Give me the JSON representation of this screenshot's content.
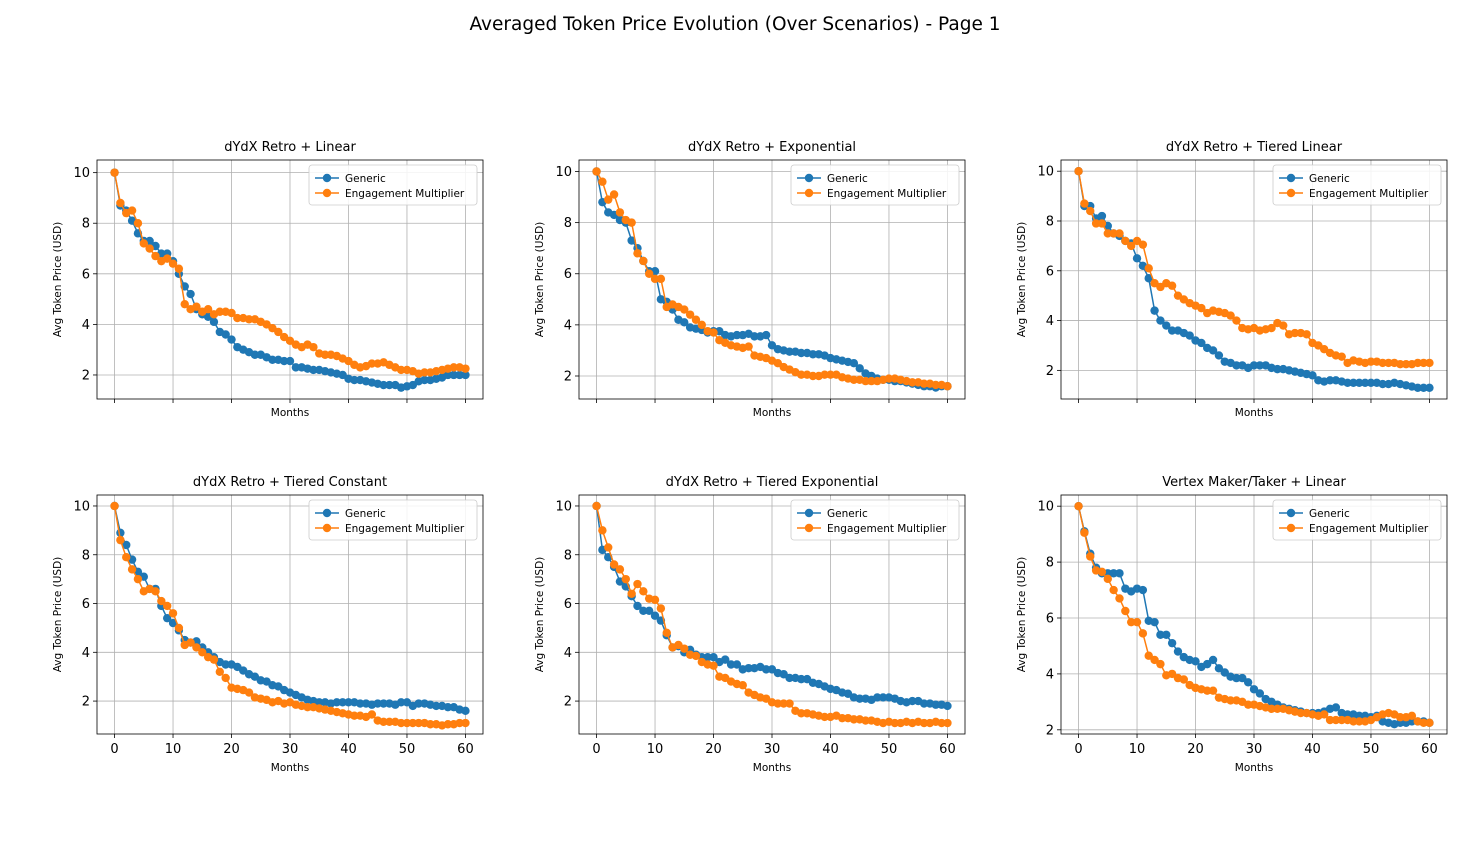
{
  "suptitle": "Averaged Token Price Evolution (Over Scenarios) - Page 1",
  "colors": {
    "generic": "#1f77b4",
    "engagement": "#ff7f0e",
    "grid": "#b0b0b0"
  },
  "chart_data": [
    {
      "type": "line",
      "title": "dYdX Retro + Linear",
      "xlabel": "Months",
      "ylabel": "Avg Token Price (USD)",
      "xlim": [
        -3,
        63
      ],
      "ylim": [
        1.05,
        10.5
      ],
      "xticks": [
        0,
        10,
        20,
        30,
        40,
        50,
        60
      ],
      "yticks": [
        2,
        4,
        6,
        8,
        10
      ],
      "show_xtick_labels": false,
      "grid": true,
      "legend": "top-right",
      "series": [
        {
          "name": "Generic",
          "values": [
            10,
            8.7,
            8.5,
            8.1,
            7.6,
            7.3,
            7.3,
            7.1,
            6.8,
            6.8,
            6.5,
            6.0,
            5.5,
            5.2,
            4.6,
            4.4,
            4.3,
            4.1,
            3.7,
            3.6,
            3.4,
            3.1,
            3.0,
            2.9,
            2.8,
            2.8,
            2.7,
            2.6,
            2.6,
            2.55,
            2.55,
            2.3,
            2.3,
            2.25,
            2.2,
            2.2,
            2.15,
            2.1,
            2.05,
            2.0,
            1.85,
            1.8,
            1.8,
            1.75,
            1.7,
            1.65,
            1.6,
            1.6,
            1.6,
            1.5,
            1.55,
            1.6,
            1.75,
            1.8,
            1.8,
            1.85,
            1.9,
            2.0,
            2.0,
            2.0,
            2.0
          ]
        },
        {
          "name": "Engagement Multiplier",
          "values": [
            10,
            8.8,
            8.4,
            8.5,
            8.0,
            7.2,
            7.0,
            6.7,
            6.5,
            6.6,
            6.4,
            6.2,
            4.8,
            4.6,
            4.7,
            4.5,
            4.6,
            4.4,
            4.5,
            4.5,
            4.45,
            4.25,
            4.25,
            4.2,
            4.2,
            4.1,
            4.0,
            3.85,
            3.7,
            3.5,
            3.35,
            3.2,
            3.1,
            3.2,
            3.1,
            2.85,
            2.8,
            2.8,
            2.75,
            2.65,
            2.55,
            2.4,
            2.3,
            2.35,
            2.45,
            2.45,
            2.5,
            2.4,
            2.3,
            2.2,
            2.2,
            2.15,
            2.05,
            2.1,
            2.1,
            2.15,
            2.2,
            2.25,
            2.3,
            2.3,
            2.25
          ]
        }
      ]
    },
    {
      "type": "line",
      "title": "dYdX Retro + Exponential",
      "xlabel": "Months",
      "ylabel": "Avg Token Price (USD)",
      "xlim": [
        -3,
        63
      ],
      "ylim": [
        1.1,
        10.45
      ],
      "xticks": [
        0,
        10,
        20,
        30,
        40,
        50,
        60
      ],
      "yticks": [
        2,
        4,
        6,
        8,
        10
      ],
      "show_xtick_labels": false,
      "grid": true,
      "legend": "top-right",
      "series": [
        {
          "name": "Generic",
          "values": [
            10,
            8.8,
            8.4,
            8.3,
            8.1,
            8.0,
            7.3,
            7.0,
            6.5,
            6.1,
            6.1,
            5.0,
            4.9,
            4.6,
            4.2,
            4.1,
            3.9,
            3.85,
            3.8,
            3.7,
            3.75,
            3.75,
            3.6,
            3.55,
            3.6,
            3.6,
            3.65,
            3.55,
            3.55,
            3.6,
            3.2,
            3.05,
            3.0,
            2.95,
            2.95,
            2.9,
            2.9,
            2.85,
            2.85,
            2.8,
            2.7,
            2.65,
            2.6,
            2.55,
            2.5,
            2.3,
            2.1,
            2.0,
            1.9,
            1.85,
            1.85,
            1.8,
            1.8,
            1.75,
            1.7,
            1.65,
            1.6,
            1.6,
            1.55,
            1.6,
            1.6
          ]
        },
        {
          "name": "Engagement Multiplier",
          "values": [
            10,
            9.6,
            8.9,
            9.1,
            8.4,
            8.1,
            8.0,
            6.8,
            6.5,
            6.0,
            5.8,
            5.8,
            4.7,
            4.8,
            4.7,
            4.6,
            4.4,
            4.2,
            4.0,
            3.75,
            3.7,
            3.4,
            3.3,
            3.2,
            3.15,
            3.1,
            3.15,
            2.8,
            2.75,
            2.7,
            2.6,
            2.5,
            2.35,
            2.25,
            2.15,
            2.05,
            2.05,
            2.0,
            2.0,
            2.05,
            2.05,
            2.05,
            1.95,
            1.9,
            1.85,
            1.85,
            1.8,
            1.8,
            1.8,
            1.85,
            1.9,
            1.9,
            1.85,
            1.8,
            1.75,
            1.75,
            1.7,
            1.7,
            1.65,
            1.65,
            1.6
          ]
        }
      ]
    },
    {
      "type": "line",
      "title": "dYdX Retro + Tiered Linear",
      "xlabel": "Months",
      "ylabel": "Avg Token Price (USD)",
      "xlim": [
        -3,
        63
      ],
      "ylim": [
        0.85,
        10.45
      ],
      "xticks": [
        0,
        10,
        20,
        30,
        40,
        50,
        60
      ],
      "yticks": [
        2,
        4,
        6,
        8,
        10
      ],
      "show_xtick_labels": false,
      "grid": true,
      "legend": "top-right",
      "series": [
        {
          "name": "Generic",
          "values": [
            10,
            8.6,
            8.6,
            8.1,
            8.2,
            7.8,
            7.5,
            7.4,
            7.2,
            7.1,
            6.5,
            6.2,
            5.7,
            4.4,
            4.0,
            3.8,
            3.6,
            3.6,
            3.5,
            3.4,
            3.2,
            3.1,
            2.9,
            2.8,
            2.6,
            2.35,
            2.3,
            2.2,
            2.2,
            2.1,
            2.2,
            2.2,
            2.2,
            2.1,
            2.05,
            2.05,
            2.0,
            1.95,
            1.9,
            1.85,
            1.8,
            1.6,
            1.55,
            1.6,
            1.6,
            1.55,
            1.5,
            1.5,
            1.5,
            1.5,
            1.5,
            1.5,
            1.45,
            1.45,
            1.5,
            1.45,
            1.4,
            1.35,
            1.3,
            1.3,
            1.3
          ]
        },
        {
          "name": "Engagement Multiplier",
          "values": [
            10,
            8.7,
            8.4,
            7.9,
            7.9,
            7.5,
            7.5,
            7.5,
            7.2,
            7.0,
            7.2,
            7.05,
            6.1,
            5.5,
            5.35,
            5.5,
            5.4,
            5.0,
            4.85,
            4.7,
            4.6,
            4.5,
            4.3,
            4.4,
            4.35,
            4.3,
            4.2,
            4.0,
            3.7,
            3.65,
            3.7,
            3.6,
            3.65,
            3.7,
            3.9,
            3.8,
            3.45,
            3.5,
            3.5,
            3.45,
            3.1,
            3.0,
            2.85,
            2.7,
            2.6,
            2.55,
            2.3,
            2.4,
            2.35,
            2.3,
            2.35,
            2.35,
            2.3,
            2.3,
            2.3,
            2.25,
            2.25,
            2.25,
            2.3,
            2.3,
            2.3
          ]
        }
      ]
    },
    {
      "type": "line",
      "title": "dYdX Retro + Tiered Constant",
      "xlabel": "Months",
      "ylabel": "Avg Token Price (USD)",
      "xlim": [
        -3,
        63
      ],
      "ylim": [
        0.65,
        10.45
      ],
      "xticks": [
        0,
        10,
        20,
        30,
        40,
        50,
        60
      ],
      "yticks": [
        2,
        4,
        6,
        8,
        10
      ],
      "show_xtick_labels": true,
      "grid": true,
      "legend": "top-right",
      "series": [
        {
          "name": "Generic",
          "values": [
            10,
            8.9,
            8.4,
            7.8,
            7.3,
            7.1,
            6.6,
            6.6,
            5.9,
            5.4,
            5.2,
            4.9,
            4.5,
            4.4,
            4.45,
            4.2,
            4.0,
            3.8,
            3.6,
            3.5,
            3.5,
            3.4,
            3.25,
            3.1,
            3.0,
            2.85,
            2.8,
            2.65,
            2.6,
            2.45,
            2.35,
            2.25,
            2.15,
            2.05,
            2.0,
            1.95,
            1.95,
            1.9,
            1.95,
            1.95,
            1.95,
            1.95,
            1.9,
            1.9,
            1.85,
            1.9,
            1.9,
            1.9,
            1.85,
            1.95,
            1.95,
            1.8,
            1.9,
            1.9,
            1.85,
            1.8,
            1.8,
            1.75,
            1.75,
            1.65,
            1.6
          ]
        },
        {
          "name": "Engagement Multiplier",
          "values": [
            10,
            8.6,
            7.9,
            7.4,
            7.0,
            6.5,
            6.6,
            6.5,
            6.1,
            5.9,
            5.6,
            5.0,
            4.3,
            4.4,
            4.2,
            4.0,
            3.8,
            3.7,
            3.2,
            2.95,
            2.55,
            2.5,
            2.45,
            2.35,
            2.15,
            2.1,
            2.05,
            1.95,
            2.0,
            1.9,
            1.95,
            1.85,
            1.8,
            1.75,
            1.75,
            1.7,
            1.65,
            1.6,
            1.55,
            1.5,
            1.45,
            1.4,
            1.4,
            1.35,
            1.45,
            1.2,
            1.15,
            1.15,
            1.15,
            1.1,
            1.1,
            1.1,
            1.1,
            1.1,
            1.05,
            1.05,
            1.0,
            1.05,
            1.05,
            1.1,
            1.1
          ]
        }
      ]
    },
    {
      "type": "line",
      "title": "dYdX Retro + Tiered Exponential",
      "xlabel": "Months",
      "ylabel": "Avg Token Price (USD)",
      "xlim": [
        -3,
        63
      ],
      "ylim": [
        0.65,
        10.45
      ],
      "xticks": [
        0,
        10,
        20,
        30,
        40,
        50,
        60
      ],
      "yticks": [
        2,
        4,
        6,
        8,
        10
      ],
      "show_xtick_labels": true,
      "grid": true,
      "legend": "top-right",
      "series": [
        {
          "name": "Generic",
          "values": [
            10,
            8.2,
            7.9,
            7.5,
            6.9,
            6.7,
            6.3,
            5.9,
            5.7,
            5.7,
            5.5,
            5.3,
            4.7,
            4.2,
            4.25,
            4.0,
            4.1,
            3.9,
            3.8,
            3.8,
            3.8,
            3.6,
            3.7,
            3.5,
            3.5,
            3.3,
            3.35,
            3.35,
            3.4,
            3.3,
            3.3,
            3.15,
            3.1,
            2.95,
            2.95,
            2.9,
            2.9,
            2.75,
            2.7,
            2.6,
            2.5,
            2.45,
            2.35,
            2.3,
            2.15,
            2.1,
            2.1,
            2.05,
            2.15,
            2.15,
            2.15,
            2.1,
            2.0,
            1.95,
            2.0,
            2.0,
            1.9,
            1.9,
            1.85,
            1.85,
            1.8
          ]
        },
        {
          "name": "Engagement Multiplier",
          "values": [
            10,
            9.0,
            8.3,
            7.6,
            7.4,
            7.0,
            6.4,
            6.8,
            6.5,
            6.2,
            6.15,
            5.8,
            4.8,
            4.2,
            4.3,
            4.15,
            3.9,
            3.85,
            3.6,
            3.5,
            3.45,
            3.0,
            2.95,
            2.8,
            2.7,
            2.65,
            2.35,
            2.25,
            2.15,
            2.1,
            1.95,
            1.9,
            1.9,
            1.9,
            1.6,
            1.5,
            1.5,
            1.45,
            1.4,
            1.35,
            1.35,
            1.4,
            1.3,
            1.3,
            1.25,
            1.25,
            1.2,
            1.2,
            1.15,
            1.1,
            1.15,
            1.1,
            1.1,
            1.15,
            1.1,
            1.15,
            1.1,
            1.1,
            1.15,
            1.1,
            1.1
          ]
        }
      ]
    },
    {
      "type": "line",
      "title": "Vertex Maker/Taker + Linear",
      "xlabel": "Months",
      "ylabel": "Avg Token Price (USD)",
      "xlim": [
        -3,
        63
      ],
      "ylim": [
        1.85,
        10.4
      ],
      "xticks": [
        0,
        10,
        20,
        30,
        40,
        50,
        60
      ],
      "yticks": [
        2,
        4,
        6,
        8,
        10
      ],
      "show_xtick_labels": true,
      "grid": true,
      "legend": "top-right",
      "series": [
        {
          "name": "Generic",
          "values": [
            10,
            9.1,
            8.3,
            7.8,
            7.6,
            7.6,
            7.6,
            7.6,
            7.05,
            6.95,
            7.05,
            7.0,
            5.9,
            5.85,
            5.4,
            5.4,
            5.1,
            4.8,
            4.6,
            4.5,
            4.45,
            4.25,
            4.35,
            4.5,
            4.2,
            4.05,
            3.9,
            3.85,
            3.85,
            3.7,
            3.45,
            3.3,
            3.1,
            3.0,
            2.9,
            2.8,
            2.75,
            2.7,
            2.65,
            2.6,
            2.6,
            2.6,
            2.65,
            2.75,
            2.8,
            2.6,
            2.55,
            2.55,
            2.5,
            2.5,
            2.45,
            2.5,
            2.3,
            2.25,
            2.2,
            2.25,
            2.25,
            2.3,
            2.3,
            2.3,
            2.25
          ]
        },
        {
          "name": "Engagement Multiplier",
          "values": [
            10,
            9.05,
            8.2,
            7.7,
            7.65,
            7.4,
            7.0,
            6.7,
            6.25,
            5.85,
            5.85,
            5.45,
            4.65,
            4.5,
            4.35,
            3.95,
            4.0,
            3.85,
            3.8,
            3.6,
            3.5,
            3.45,
            3.4,
            3.4,
            3.15,
            3.1,
            3.05,
            3.05,
            3.0,
            2.9,
            2.9,
            2.85,
            2.8,
            2.75,
            2.75,
            2.75,
            2.7,
            2.65,
            2.6,
            2.6,
            2.55,
            2.5,
            2.55,
            2.35,
            2.35,
            2.35,
            2.35,
            2.3,
            2.3,
            2.3,
            2.35,
            2.45,
            2.55,
            2.6,
            2.55,
            2.45,
            2.45,
            2.5,
            2.3,
            2.25,
            2.25
          ]
        }
      ]
    }
  ]
}
